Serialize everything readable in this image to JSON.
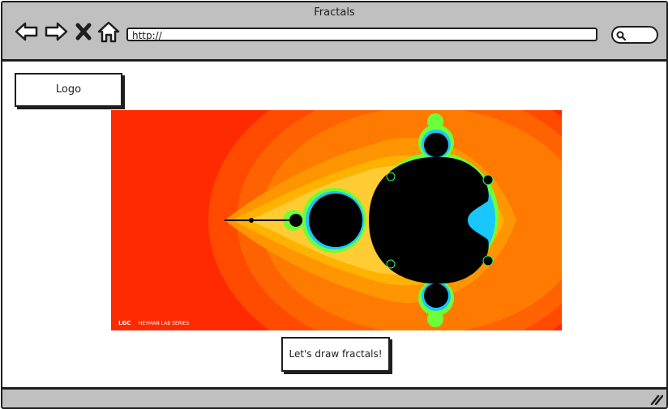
{
  "window": {
    "title": "Fractals"
  },
  "toolbar": {
    "back_icon": "back-arrow-icon",
    "forward_icon": "forward-arrow-icon",
    "stop_icon": "close-icon",
    "home_icon": "home-icon",
    "url": "http://",
    "search_icon": "search-icon"
  },
  "page": {
    "logo_label": "Logo",
    "image": {
      "icon": "mandelbrot-fractal-image",
      "watermark": "LGC",
      "watermark_small": "HEYMAN LAB SERIES"
    },
    "button_label": "Let's draw fractals!"
  },
  "colors": {
    "chrome": "#c0c0c0",
    "border": "#1e1e1e",
    "fractal_outer": "#ff2a00",
    "fractal_mid": "#ff7a00",
    "fractal_inner": "#ffb300",
    "fractal_edge": "#9cff00",
    "fractal_set": "#000000"
  }
}
